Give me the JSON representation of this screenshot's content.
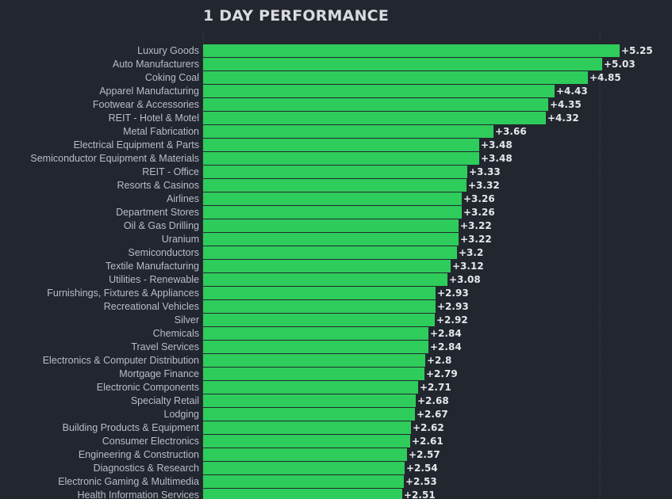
{
  "chart_data": {
    "type": "bar",
    "orientation": "horizontal",
    "title": "1 DAY PERFORMANCE",
    "categories": [
      "Luxury Goods",
      "Auto Manufacturers",
      "Coking Coal",
      "Apparel Manufacturing",
      "Footwear & Accessories",
      "REIT - Hotel & Motel",
      "Metal Fabrication",
      "Electrical Equipment & Parts",
      "Semiconductor Equipment & Materials",
      "REIT - Office",
      "Resorts & Casinos",
      "Airlines",
      "Department Stores",
      "Oil & Gas Drilling",
      "Uranium",
      "Semiconductors",
      "Textile Manufacturing",
      "Utilities - Renewable",
      "Furnishings, Fixtures & Appliances",
      "Recreational Vehicles",
      "Silver",
      "Chemicals",
      "Travel Services",
      "Electronics & Computer Distribution",
      "Mortgage Finance",
      "Electronic Components",
      "Specialty Retail",
      "Lodging",
      "Building Products & Equipment",
      "Consumer Electronics",
      "Engineering & Construction",
      "Diagnostics & Research",
      "Electronic Gaming & Multimedia",
      "Health Information Services"
    ],
    "values": [
      5.25,
      5.03,
      4.85,
      4.43,
      4.35,
      4.32,
      3.66,
      3.48,
      3.48,
      3.33,
      3.32,
      3.26,
      3.26,
      3.22,
      3.22,
      3.2,
      3.12,
      3.08,
      2.93,
      2.93,
      2.92,
      2.84,
      2.84,
      2.8,
      2.79,
      2.71,
      2.68,
      2.67,
      2.62,
      2.61,
      2.57,
      2.54,
      2.53,
      2.51
    ],
    "value_labels": [
      "+5.25",
      "+5.03",
      "+4.85",
      "+4.43",
      "+4.35",
      "+4.32",
      "+3.66",
      "+3.48",
      "+3.48",
      "+3.33",
      "+3.32",
      "+3.26",
      "+3.26",
      "+3.22",
      "+3.22",
      "+3.2",
      "+3.12",
      "+3.08",
      "+2.93",
      "+2.93",
      "+2.92",
      "+2.84",
      "+2.84",
      "+2.8",
      "+2.79",
      "+2.71",
      "+2.68",
      "+2.67",
      "+2.62",
      "+2.61",
      "+2.57",
      "+2.54",
      "+2.53",
      "+2.51"
    ],
    "xlim": [
      0,
      5.25
    ],
    "grid": true,
    "colors": {
      "bar": "#2ecc5a",
      "background": "#22262f"
    }
  }
}
